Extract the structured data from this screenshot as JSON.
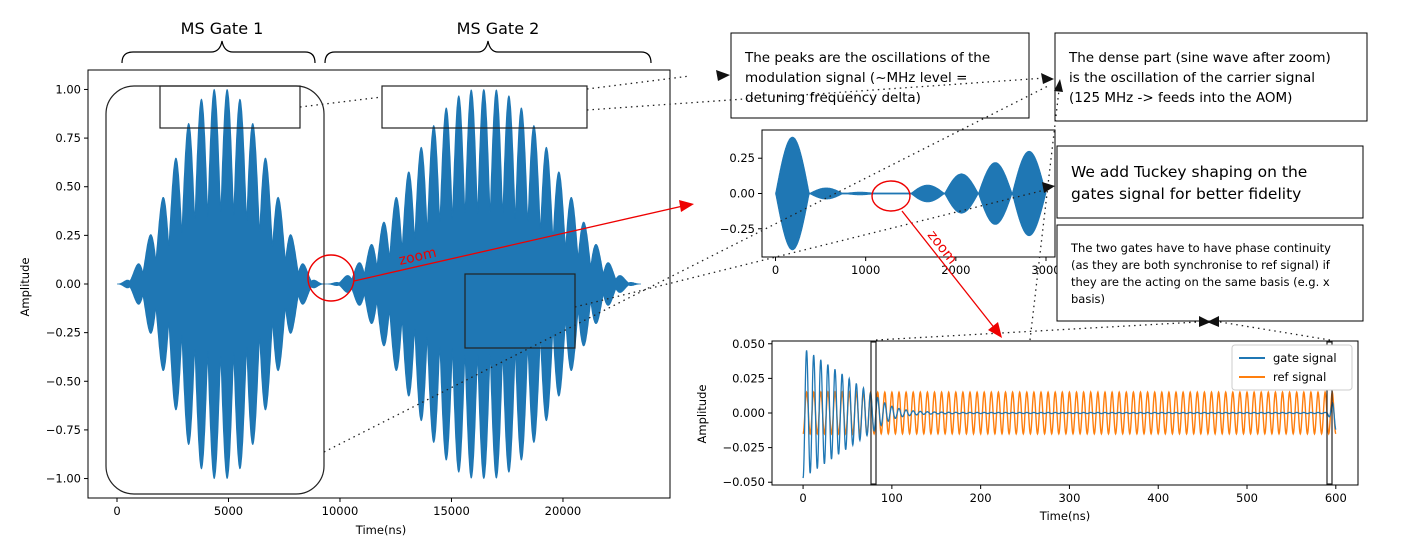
{
  "colors": {
    "gate": "#1f77b4",
    "ref": "#ff7f0e",
    "zoom_red": "#ee0000",
    "text": "#000000"
  },
  "gate_labels": {
    "gate1": "MS Gate 1",
    "gate2": "MS Gate 2"
  },
  "annotations": {
    "zoom1": "zoom",
    "zoom2": "zoom",
    "peaks_note": [
      "The peaks are the oscillations of the",
      "modulation signal (~MHz level =",
      "detuning frequency delta)"
    ],
    "dense_note": [
      "The dense part (sine wave after zoom)",
      "is the oscillation of the carrier signal",
      "(125 MHz -> feeds into the AOM)"
    ],
    "tuckey_note": [
      "We add Tuckey shaping on the",
      "gates signal for better fidelity"
    ],
    "phase_note": [
      "The two gates have to have phase continuity",
      "(as they are both synchronise to ref signal) if",
      "they are the acting on the same basis (e.g. x",
      "basis)"
    ]
  },
  "chart_data": [
    {
      "id": "main",
      "type": "line",
      "title": "",
      "xlabel": "Time(ns)",
      "ylabel": "Amplitude",
      "xlim": [
        -1300,
        24800
      ],
      "ylim": [
        -1.1,
        1.1
      ],
      "xticks": [
        0,
        5000,
        10000,
        15000,
        20000
      ],
      "xtick_labels": [
        "0",
        "5000",
        "10000",
        "15000",
        "20000"
      ],
      "yticks": [
        1.0,
        0.75,
        0.5,
        0.25,
        0.0,
        -0.25,
        -0.5,
        -0.75,
        -1.0
      ],
      "ytick_labels": [
        "1.00",
        "0.75",
        "0.50",
        "0.25",
        "0.00",
        "−0.25",
        "−0.50",
        "−0.75",
        "−1.00"
      ],
      "series": [
        {
          "name": "MS Gate 1 signal",
          "t_start": 0,
          "t_end": 9300,
          "peak_amplitude": 1.0,
          "modulation_lobes": 16
        },
        {
          "name": "MS Gate 2 signal",
          "t_start": 9400,
          "t_end": 23500,
          "peak_amplitude": 1.0,
          "modulation_lobes": 25
        }
      ]
    },
    {
      "id": "zoom1",
      "type": "line",
      "xlim": [
        -150,
        3100
      ],
      "ylim": [
        -0.45,
        0.45
      ],
      "xticks": [
        0,
        1000,
        2000,
        3000
      ],
      "xtick_labels": [
        "0",
        "1000",
        "2000",
        "3000"
      ],
      "yticks": [
        0.25,
        0.0,
        -0.25
      ],
      "ytick_labels": [
        "0.25",
        "0.00",
        "−0.25"
      ],
      "series": [
        {
          "name": "gap region between gates",
          "t_start": 0,
          "t_end": 3000,
          "lobe_peaks": [
            0.4,
            0.04,
            0.01,
            0.0,
            0.06,
            0.14,
            0.22,
            0.3
          ]
        }
      ]
    },
    {
      "id": "zoom2",
      "type": "line",
      "xlabel": "Time(ns)",
      "ylabel": "Amplitude",
      "xlim": [
        -35,
        625
      ],
      "ylim": [
        -0.052,
        0.052
      ],
      "xticks": [
        0,
        100,
        200,
        300,
        400,
        500,
        600
      ],
      "xtick_labels": [
        "0",
        "100",
        "200",
        "300",
        "400",
        "500",
        "600"
      ],
      "yticks": [
        0.05,
        0.025,
        0.0,
        -0.025,
        -0.05
      ],
      "ytick_labels": [
        "0.050",
        "0.025",
        "0.000",
        "−0.025",
        "−0.050"
      ],
      "series": [
        {
          "name": "gate signal",
          "t_start": 0,
          "t_end": 600,
          "initial_amplitude": 0.047,
          "period_ns": 8
        },
        {
          "name": "ref signal",
          "t_start": 0,
          "t_end": 600,
          "amplitude": 0.015,
          "period_ns": 8
        }
      ],
      "legend": {
        "position": "top-right",
        "entries": [
          "gate signal",
          "ref signal"
        ]
      }
    }
  ]
}
